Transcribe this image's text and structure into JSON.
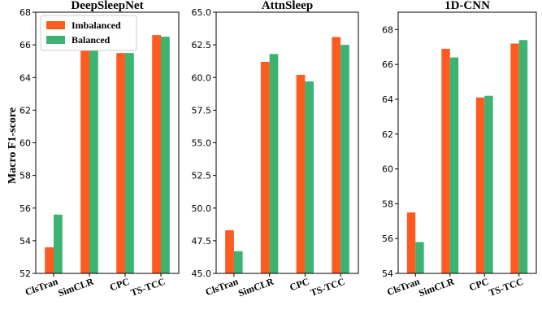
{
  "ylabel": "Macro F1-score",
  "colors": {
    "imbalanced": "#ff5a1f",
    "balanced": "#3cb371"
  },
  "legend": {
    "position": "upper-left",
    "items": [
      "Imbalanced",
      "Balanced"
    ]
  },
  "chart_data": [
    {
      "type": "bar",
      "title": "DeepSleepNet",
      "categories": [
        "ClsTran",
        "SimCLR",
        "CPC",
        "TS-TCC"
      ],
      "series": [
        {
          "name": "Imbalanced",
          "values": [
            53.6,
            65.9,
            65.5,
            66.6
          ]
        },
        {
          "name": "Balanced",
          "values": [
            55.6,
            65.7,
            65.5,
            66.5
          ]
        }
      ],
      "ylim": [
        52,
        68
      ],
      "yticks": [
        "52",
        "54",
        "56",
        "58",
        "60",
        "62",
        "64",
        "66",
        "68"
      ]
    },
    {
      "type": "bar",
      "title": "AttnSleep",
      "categories": [
        "ClsTran",
        "SimCLR",
        "CPC",
        "TS-TCC"
      ],
      "series": [
        {
          "name": "Imbalanced",
          "values": [
            48.3,
            61.2,
            60.2,
            63.1
          ]
        },
        {
          "name": "Balanced",
          "values": [
            46.7,
            61.8,
            59.7,
            62.5
          ]
        }
      ],
      "ylim": [
        45,
        65
      ],
      "yticks": [
        "45.0",
        "47.5",
        "50.0",
        "52.5",
        "55.0",
        "57.5",
        "60.0",
        "62.5",
        "65.0"
      ]
    },
    {
      "type": "bar",
      "title": "1D-CNN",
      "categories": [
        "ClsTran",
        "SimCLR",
        "CPC",
        "TS-TCC"
      ],
      "series": [
        {
          "name": "Imbalanced",
          "values": [
            57.5,
            66.9,
            64.1,
            67.2
          ]
        },
        {
          "name": "Balanced",
          "values": [
            55.8,
            66.4,
            64.2,
            67.4
          ]
        }
      ],
      "ylim": [
        54,
        69
      ],
      "yticks": [
        "54",
        "56",
        "58",
        "60",
        "62",
        "64",
        "66",
        "68"
      ]
    }
  ]
}
